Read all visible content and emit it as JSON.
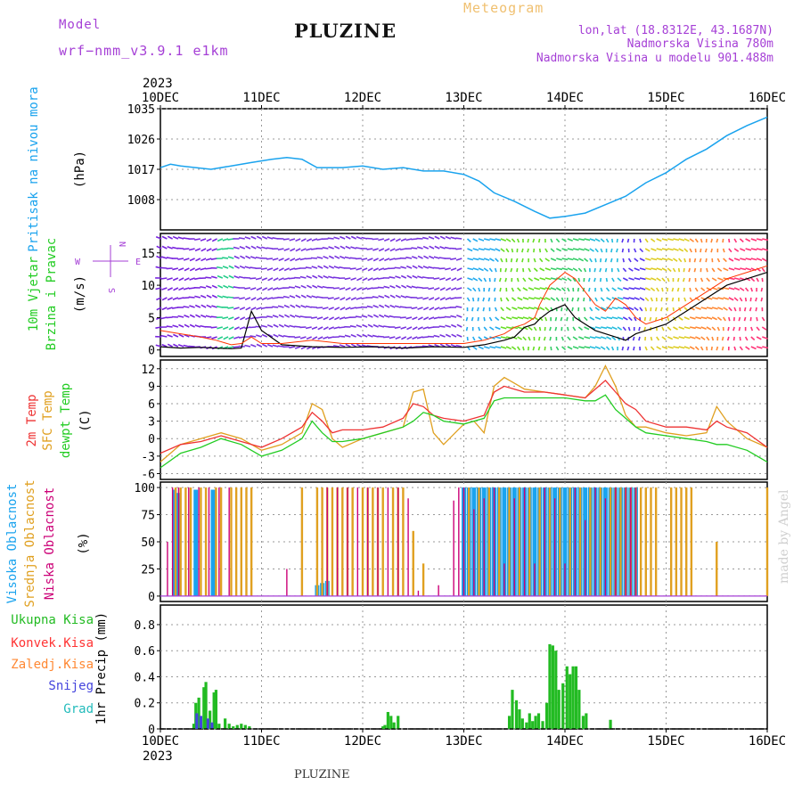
{
  "header": {
    "model_label": "Model",
    "model_name": "wrf−nmm_v3.9.1  e1km",
    "station": "PLUZINE",
    "title": "Meteogram",
    "coords": "lon,lat (18.8312E, 43.1687N)",
    "elevation": "Nadmorska Visina 780m",
    "model_elevation": "Nadmorska Visina u modelu 901.488m"
  },
  "footer": {
    "station": "PLUZINE",
    "credit": "made by Angel"
  },
  "time_axis": {
    "year": "2023",
    "days": [
      "10DEC",
      "11DEC",
      "12DEC",
      "13DEC",
      "14DEC",
      "15DEC",
      "16DEC"
    ]
  },
  "colors": {
    "pressure": "#1aa3ee",
    "wind_speed": "#000000",
    "gust": "#ff3300",
    "t2m": "#ee3333",
    "sfc": "#e0a020",
    "dewpt": "#22cc22",
    "cloud_high": "#1aa3ee",
    "cloud_mid": "#e0a020",
    "cloud_low": "#cc0077",
    "precip_total": "#22bb22",
    "precip_conv": "#ff3333",
    "precip_frozen": "#ff8833",
    "precip_snow": "#4444dd",
    "precip_hail": "#22bbbb"
  },
  "chart_data": [
    {
      "type": "line",
      "panel": "pressure",
      "ylabel": [
        "Pritisak na nivou mora",
        "(hPa)"
      ],
      "yticks": [
        1008,
        1017,
        1026,
        1035
      ],
      "ylim": [
        999,
        1035
      ],
      "x_days": [
        0,
        0.1,
        0.2,
        0.35,
        0.5,
        0.7,
        0.9,
        1.1,
        1.25,
        1.4,
        1.55,
        1.8,
        2.0,
        2.2,
        2.4,
        2.6,
        2.8,
        3.0,
        3.15,
        3.3,
        3.5,
        3.7,
        3.85,
        4.0,
        4.2,
        4.4,
        4.6,
        4.8,
        5.0,
        5.2,
        5.4,
        5.6,
        5.8,
        6.0
      ],
      "series": [
        {
          "values": [
            1017.5,
            1018.5,
            1018,
            1017.5,
            1017,
            1018,
            1019,
            1020,
            1020.5,
            1020,
            1017.5,
            1017.5,
            1018,
            1017,
            1017.5,
            1016.5,
            1016.5,
            1015.5,
            1013.5,
            1010,
            1007.5,
            1004.5,
            1002.5,
            1003,
            1004,
            1006.5,
            1009,
            1013,
            1016,
            1020,
            1023,
            1027,
            1030,
            1032.5
          ]
        }
      ],
      "grid": true
    },
    {
      "type": "line",
      "panel": "wind",
      "ylabel": [
        "10m Vjetar",
        "Brzina i Pravac",
        "(m/s)"
      ],
      "compass": {
        "n": "N",
        "e": "E",
        "w": "W",
        "s": "S"
      },
      "yticks": [
        0,
        5,
        10,
        15
      ],
      "ylim": [
        -1,
        18
      ],
      "x_days": [
        0,
        0.2,
        0.4,
        0.55,
        0.7,
        0.8,
        0.9,
        1.0,
        1.2,
        1.5,
        1.8,
        2.1,
        2.4,
        2.7,
        3.0,
        3.2,
        3.4,
        3.5,
        3.6,
        3.7,
        3.75,
        3.85,
        4.0,
        4.1,
        4.2,
        4.3,
        4.4,
        4.5,
        4.6,
        4.7,
        4.8,
        5.0,
        5.2,
        5.4,
        5.6,
        5.8,
        6.0
      ],
      "series": [
        {
          "values": [
            0.5,
            0.3,
            0.4,
            0.3,
            0.2,
            0.3,
            6.0,
            3.0,
            0.8,
            0.5,
            0.4,
            0.5,
            0.3,
            0.5,
            0.4,
            0.8,
            1.5,
            2.0,
            3.5,
            4.0,
            4.8,
            6.0,
            7.0,
            5.0,
            4.0,
            3.0,
            2.5,
            2.0,
            1.5,
            2.5,
            3.0,
            4.0,
            6.0,
            8.0,
            10.0,
            11.0,
            12.0
          ]
        },
        {
          "values": [
            3.0,
            2.5,
            2.0,
            1.5,
            0.8,
            1.0,
            2.0,
            1.0,
            1.0,
            1.5,
            1.0,
            1.0,
            1.0,
            1.0,
            1.0,
            1.5,
            2.5,
            3.5,
            4.0,
            5.0,
            7.0,
            10.0,
            12.0,
            11.0,
            9.0,
            7.0,
            6.0,
            8.0,
            7.0,
            5.0,
            4.0,
            5.0,
            7.0,
            9.0,
            11.0,
            12.0,
            13.0
          ]
        }
      ]
    },
    {
      "type": "line",
      "panel": "temperature",
      "ylabel": [
        "2m Temp",
        "SFC Temp",
        "dewpt Temp",
        "(C)"
      ],
      "yticks": [
        -6,
        -3,
        0,
        3,
        6,
        9,
        12
      ],
      "ylim": [
        -7,
        13.5
      ],
      "x_days": [
        0,
        0.2,
        0.4,
        0.6,
        0.8,
        1.0,
        1.2,
        1.4,
        1.5,
        1.6,
        1.7,
        1.8,
        2.0,
        2.2,
        2.4,
        2.5,
        2.6,
        2.7,
        2.8,
        3.0,
        3.1,
        3.2,
        3.3,
        3.4,
        3.5,
        3.6,
        3.8,
        4.0,
        4.2,
        4.3,
        4.4,
        4.5,
        4.6,
        4.7,
        4.8,
        5.0,
        5.2,
        5.4,
        5.5,
        5.6,
        5.8,
        6.0
      ],
      "series": [
        {
          "name": "2m Temp",
          "values": [
            -2.5,
            -1.0,
            -0.5,
            0.5,
            -0.5,
            -1.5,
            0.0,
            2.0,
            4.5,
            3.0,
            1.0,
            1.5,
            1.5,
            2.0,
            3.5,
            6.0,
            5.5,
            4.0,
            3.5,
            3.0,
            3.5,
            4.0,
            8.0,
            9.0,
            8.5,
            8.0,
            8.0,
            7.5,
            7.0,
            8.5,
            10.0,
            8.0,
            6.0,
            5.0,
            3.0,
            2.0,
            2.0,
            1.5,
            3.0,
            2.0,
            1.0,
            -1.5
          ]
        },
        {
          "name": "SFC Temp",
          "values": [
            -4.0,
            -1.0,
            0.0,
            1.0,
            0.0,
            -2.0,
            -1.0,
            1.0,
            6.0,
            5.0,
            0.0,
            -1.5,
            0.0,
            1.0,
            2.0,
            8.0,
            8.5,
            1.0,
            -1.0,
            2.5,
            3.0,
            1.0,
            9.0,
            10.5,
            9.5,
            8.5,
            8.0,
            7.5,
            7.0,
            9.0,
            12.5,
            9.0,
            4.0,
            2.0,
            2.0,
            1.0,
            0.5,
            1.0,
            5.5,
            3.0,
            0.0,
            -1.5
          ]
        },
        {
          "name": "dewpt Temp",
          "values": [
            -5.0,
            -2.5,
            -1.5,
            0.0,
            -1.0,
            -3.0,
            -2.0,
            0.0,
            3.0,
            1.0,
            -0.5,
            -0.5,
            0.0,
            1.0,
            2.0,
            3.0,
            4.5,
            4.0,
            3.0,
            2.5,
            3.0,
            3.5,
            6.5,
            7.0,
            7.0,
            7.0,
            7.0,
            7.0,
            6.5,
            6.5,
            7.5,
            5.0,
            3.5,
            2.0,
            1.0,
            0.5,
            0.0,
            -0.5,
            -1.0,
            -1.0,
            -2.0,
            -4.0
          ]
        }
      ]
    },
    {
      "type": "bar",
      "panel": "clouds",
      "ylabel": [
        "Visoka Oblacnost",
        "Srednja Oblacnost",
        "Niska Oblacnost",
        "(%)"
      ],
      "yticks": [
        0,
        25,
        50,
        75,
        100
      ],
      "ylim": [
        -5,
        105
      ],
      "series": [
        {
          "name": "Visoka Oblacnost",
          "x_days": [
            0.14,
            0.18,
            0.35,
            0.52,
            1.55,
            1.6,
            1.65,
            3.0,
            3.05,
            3.1,
            3.15,
            3.2,
            3.25,
            3.3,
            3.35,
            3.4,
            3.45,
            3.5,
            3.55,
            3.6,
            3.65,
            3.7,
            3.75,
            3.8,
            3.85,
            3.9,
            3.95,
            4.0,
            4.05,
            4.1,
            4.15,
            4.2,
            4.25,
            4.3,
            4.35,
            4.4,
            4.45,
            4.5,
            4.55,
            4.6,
            4.65,
            4.7
          ],
          "values": [
            98,
            95,
            98,
            98,
            10,
            12,
            14,
            100,
            100,
            100,
            100,
            100,
            100,
            100,
            100,
            100,
            100,
            100,
            100,
            100,
            100,
            100,
            100,
            100,
            100,
            100,
            100,
            100,
            100,
            100,
            100,
            100,
            100,
            100,
            100,
            100,
            100,
            100,
            100,
            100,
            100,
            100
          ]
        },
        {
          "name": "Srednja Oblacnost",
          "x_days": [
            0.15,
            0.2,
            0.25,
            0.3,
            0.4,
            0.45,
            0.55,
            0.6,
            0.7,
            0.75,
            0.8,
            0.85,
            0.9,
            1.4,
            1.55,
            1.6,
            1.65,
            1.7,
            1.75,
            1.8,
            1.85,
            1.9,
            2.0,
            2.05,
            2.1,
            2.15,
            2.2,
            2.3,
            2.35,
            2.4,
            2.5,
            2.6,
            3.05,
            3.15,
            3.25,
            3.35,
            3.45,
            3.55,
            3.65,
            3.75,
            3.85,
            3.95,
            4.05,
            4.15,
            4.25,
            4.35,
            4.45,
            4.5,
            4.55,
            4.6,
            4.65,
            4.7,
            4.75,
            4.8,
            4.85,
            4.9,
            5.05,
            5.1,
            5.15,
            5.2,
            5.25,
            5.5,
            6.0
          ],
          "values": [
            100,
            100,
            100,
            100,
            100,
            100,
            100,
            100,
            100,
            100,
            100,
            100,
            100,
            100,
            100,
            100,
            100,
            100,
            100,
            100,
            100,
            100,
            100,
            100,
            100,
            100,
            100,
            100,
            100,
            100,
            60,
            30,
            100,
            100,
            100,
            100,
            100,
            100,
            100,
            100,
            100,
            100,
            100,
            100,
            100,
            100,
            100,
            100,
            100,
            100,
            100,
            100,
            100,
            100,
            100,
            100,
            100,
            100,
            100,
            100,
            100,
            50,
            100
          ]
        },
        {
          "name": "Niska Oblacnost",
          "x_days": [
            0.07,
            0.12,
            0.18,
            0.28,
            0.38,
            0.48,
            0.58,
            0.68,
            1.25,
            1.65,
            1.75,
            1.85,
            1.95,
            2.05,
            2.15,
            2.25,
            2.35,
            2.45,
            2.55,
            2.75,
            2.9,
            2.95,
            3.0,
            3.1,
            3.2,
            3.3,
            3.4,
            3.5,
            3.6,
            3.7,
            3.8,
            3.9,
            4.0,
            4.1,
            4.2,
            4.3,
            4.4,
            4.5,
            4.6,
            4.65,
            4.7
          ],
          "values": [
            50,
            100,
            100,
            100,
            100,
            100,
            100,
            100,
            25,
            100,
            100,
            100,
            100,
            100,
            100,
            100,
            100,
            90,
            5,
            10,
            88,
            100,
            100,
            80,
            90,
            100,
            30,
            90,
            100,
            30,
            100,
            90,
            30,
            100,
            70,
            100,
            90,
            100,
            100,
            100,
            100
          ]
        }
      ]
    },
    {
      "type": "bar",
      "panel": "precipitation",
      "ylabel": [
        "1hr Precip (mm)"
      ],
      "legend": [
        "Ukupna Kisa",
        "Konvek.Kisa",
        "Zaledj.Kisa",
        "Snijeg",
        "Grad"
      ],
      "yticks": [
        0,
        0.2,
        0.4,
        0.6,
        0.8
      ],
      "ylim": [
        0,
        0.95
      ],
      "series": [
        {
          "name": "Ukupna Kisa",
          "x_days": [
            0.33,
            0.35,
            0.38,
            0.43,
            0.45,
            0.49,
            0.53,
            0.55,
            0.58,
            0.64,
            0.68,
            0.72,
            0.76,
            0.8,
            0.84,
            0.88,
            2.2,
            2.22,
            2.25,
            2.28,
            2.31,
            2.35,
            3.45,
            3.48,
            3.52,
            3.55,
            3.58,
            3.62,
            3.65,
            3.68,
            3.71,
            3.74,
            3.78,
            3.82,
            3.85,
            3.88,
            3.91,
            3.94,
            3.98,
            4.02,
            4.05,
            4.08,
            4.11,
            4.14,
            4.18,
            4.21,
            4.45
          ],
          "values": [
            0.04,
            0.2,
            0.24,
            0.32,
            0.36,
            0.14,
            0.28,
            0.3,
            0.04,
            0.08,
            0.04,
            0.02,
            0.03,
            0.04,
            0.03,
            0.02,
            0.02,
            0.03,
            0.13,
            0.1,
            0.05,
            0.1,
            0.1,
            0.3,
            0.22,
            0.15,
            0.08,
            0.05,
            0.12,
            0.06,
            0.1,
            0.12,
            0.06,
            0.2,
            0.65,
            0.64,
            0.6,
            0.3,
            0.35,
            0.48,
            0.42,
            0.48,
            0.48,
            0.3,
            0.1,
            0.12,
            0.07
          ]
        },
        {
          "name": "Snijeg",
          "x_days": [
            0.36,
            0.4,
            0.47,
            0.51
          ],
          "values": [
            0.12,
            0.1,
            0.08,
            0.05
          ]
        }
      ]
    }
  ]
}
